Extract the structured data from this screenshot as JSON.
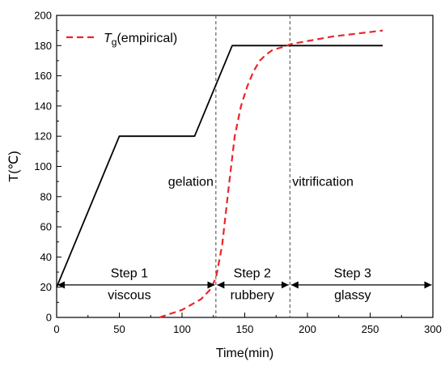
{
  "chart_data": {
    "type": "line",
    "xlabel": "Time(min)",
    "ylabel": "T(℃)",
    "xlim": [
      0,
      300
    ],
    "ylim": [
      0,
      200
    ],
    "x_ticks": [
      0,
      50,
      100,
      150,
      200,
      250,
      300
    ],
    "y_ticks": [
      0,
      20,
      40,
      60,
      80,
      100,
      120,
      140,
      160,
      180,
      200
    ],
    "grid": false,
    "legend_position": "top-left",
    "legend_prefix": "T",
    "legend_subscript": "g",
    "legend_suffix": "(empirical)",
    "series": [
      {
        "style": "solid",
        "color": "#000000",
        "x": [
          0,
          50,
          110,
          140,
          260
        ],
        "y": [
          20,
          120,
          120,
          180,
          180
        ]
      },
      {
        "name": "Tg(empirical)",
        "style": "dashed",
        "color": "#e8262b",
        "x": [
          82,
          100,
          115,
          122,
          127,
          132,
          137,
          142,
          147,
          152,
          157,
          162,
          167,
          172,
          180,
          187,
          200,
          220,
          240,
          260
        ],
        "y": [
          0,
          5,
          12,
          18,
          26,
          48,
          85,
          120,
          140,
          153,
          163,
          170,
          174,
          177,
          179,
          181,
          183,
          186,
          188,
          190
        ]
      }
    ],
    "vlines": [
      {
        "x": 127,
        "label": "gelation"
      },
      {
        "x": 186,
        "label": "vitrification"
      }
    ],
    "arrows": [
      {
        "from": 0,
        "to": 127,
        "y": 21.5
      },
      {
        "from": 127,
        "to": 186,
        "y": 21.5
      },
      {
        "from": 186,
        "to": 300,
        "y": 21.5
      }
    ],
    "steps": [
      {
        "title": "Step 1",
        "state": "viscous",
        "x": 58
      },
      {
        "title": "Step 2",
        "state": "rubbery",
        "x": 156
      },
      {
        "title": "Step 3",
        "state": "glassy",
        "x": 236
      }
    ]
  }
}
